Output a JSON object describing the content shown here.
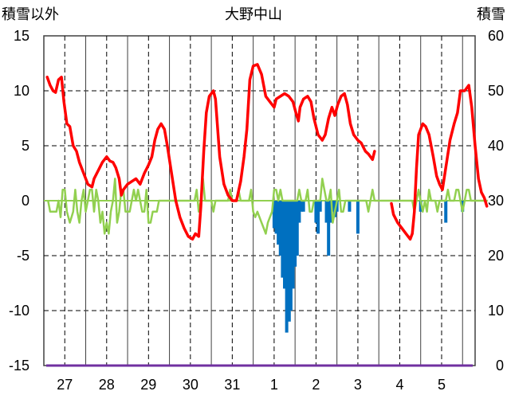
{
  "chart_data": {
    "type": "line",
    "title": "大野中山",
    "left_axis_label": "積雪以外",
    "right_axis_label": "積雪",
    "y_left_range": [
      -15,
      15
    ],
    "y_left_ticks": [
      "15",
      "10",
      "5",
      "0",
      "-5",
      "-10",
      "-15"
    ],
    "y_right_range": [
      0,
      60
    ],
    "y_right_ticks": [
      "60",
      "50",
      "40",
      "30",
      "20",
      "10",
      "0"
    ],
    "x_range_days": [
      0,
      10.3
    ],
    "x_ticks": [
      "27",
      "28",
      "29",
      "30",
      "31",
      "1",
      "2",
      "3",
      "4",
      "5"
    ],
    "grid": true,
    "colors": {
      "snow_depth": "#ff0000",
      "temperature": "#92d050",
      "snowfall": "#0070c0",
      "baseline": "#7030a0",
      "zero_line": "#92d050",
      "grid": "#000000"
    },
    "series": [
      {
        "axis": "right",
        "kind": "line",
        "points": [
          [
            0.08,
            52.5
          ],
          [
            0.15,
            51
          ],
          [
            0.22,
            50
          ],
          [
            0.28,
            49.7
          ],
          [
            0.35,
            52
          ],
          [
            0.42,
            52.5
          ],
          [
            0.48,
            48
          ],
          [
            0.55,
            44
          ],
          [
            0.62,
            43.5
          ],
          [
            0.7,
            40
          ],
          [
            0.78,
            39
          ],
          [
            0.85,
            37
          ],
          [
            0.95,
            35
          ],
          [
            1.05,
            33
          ],
          [
            1.15,
            32.5
          ],
          [
            1.2,
            34
          ],
          [
            1.3,
            35.5
          ],
          [
            1.4,
            37
          ],
          [
            1.5,
            38
          ],
          [
            1.58,
            37.2
          ],
          [
            1.65,
            37
          ],
          [
            1.72,
            36
          ],
          [
            1.8,
            34
          ],
          [
            1.85,
            31
          ],
          [
            1.9,
            32
          ],
          [
            2.0,
            33
          ],
          [
            2.1,
            33.5
          ],
          [
            2.2,
            34
          ],
          [
            2.3,
            33
          ],
          [
            2.4,
            35
          ],
          [
            2.5,
            36.5
          ],
          [
            2.58,
            38
          ],
          [
            2.65,
            41
          ],
          [
            2.72,
            43
          ],
          [
            2.8,
            44
          ],
          [
            2.88,
            43
          ],
          [
            2.95,
            40
          ],
          [
            3.05,
            35
          ],
          [
            3.15,
            30
          ],
          [
            3.25,
            27
          ],
          [
            3.35,
            25
          ],
          [
            3.45,
            23.5
          ],
          [
            3.55,
            23
          ],
          [
            3.62,
            24
          ],
          [
            3.7,
            23.5
          ],
          [
            3.75,
            29
          ],
          [
            3.82,
            39
          ],
          [
            3.88,
            46
          ],
          [
            3.95,
            49
          ],
          [
            4.05,
            50
          ],
          [
            4.1,
            48.5
          ],
          [
            4.2,
            38
          ],
          [
            4.3,
            33
          ],
          [
            4.4,
            31
          ],
          [
            4.5,
            30
          ],
          [
            4.6,
            30
          ],
          [
            4.7,
            33.5
          ],
          [
            4.78,
            38
          ],
          [
            4.85,
            43
          ],
          [
            4.92,
            52
          ],
          [
            5.0,
            54.5
          ],
          [
            5.1,
            54.8
          ],
          [
            5.2,
            53
          ],
          [
            5.3,
            49
          ],
          [
            5.4,
            48
          ],
          [
            5.5,
            47
          ],
          [
            5.55,
            48.5
          ],
          [
            5.65,
            49
          ],
          [
            5.75,
            49.5
          ],
          [
            5.85,
            49
          ],
          [
            5.95,
            48
          ],
          [
            6.02,
            46
          ],
          [
            6.08,
            44.5
          ],
          [
            6.12,
            47
          ],
          [
            6.2,
            48.5
          ],
          [
            6.3,
            49
          ],
          [
            6.38,
            48
          ],
          [
            6.45,
            45
          ],
          [
            6.55,
            42
          ],
          [
            6.65,
            41
          ],
          [
            6.72,
            42
          ],
          [
            6.8,
            45
          ],
          [
            6.88,
            47
          ],
          [
            6.95,
            45.5
          ],
          [
            7.02,
            47.5
          ],
          [
            7.1,
            49
          ],
          [
            7.18,
            49.5
          ],
          [
            7.25,
            47.5
          ],
          [
            7.32,
            44
          ],
          [
            7.4,
            42
          ],
          [
            7.5,
            41
          ],
          [
            7.58,
            40.5
          ],
          [
            7.68,
            39
          ],
          [
            7.75,
            38.5
          ],
          [
            7.8,
            38
          ],
          [
            7.85,
            37.5
          ],
          [
            7.9,
            39
          ]
        ]
      },
      {
        "axis": "right",
        "kind": "line",
        "points": [
          [
            8.3,
            29.5
          ],
          [
            8.35,
            27.5
          ],
          [
            8.45,
            26
          ],
          [
            8.55,
            25
          ],
          [
            8.65,
            24
          ],
          [
            8.75,
            23
          ],
          [
            8.8,
            24
          ],
          [
            8.85,
            28
          ],
          [
            8.9,
            36
          ],
          [
            8.95,
            42
          ],
          [
            9.05,
            44
          ],
          [
            9.12,
            43.5
          ],
          [
            9.2,
            42
          ],
          [
            9.3,
            38
          ],
          [
            9.38,
            34.5
          ],
          [
            9.45,
            33
          ],
          [
            9.52,
            32
          ],
          [
            9.6,
            36
          ],
          [
            9.7,
            41
          ],
          [
            9.8,
            44
          ],
          [
            9.88,
            46
          ],
          [
            9.95,
            50
          ],
          [
            10.05,
            50
          ],
          [
            10.15,
            51
          ],
          [
            10.22,
            47
          ],
          [
            10.3,
            40
          ],
          [
            10.38,
            34
          ],
          [
            10.45,
            31.5
          ],
          [
            10.52,
            30.5
          ],
          [
            10.58,
            29
          ]
        ]
      },
      {
        "axis": "left",
        "kind": "line",
        "points": [
          [
            0.1,
            0
          ],
          [
            0.15,
            -1
          ],
          [
            0.2,
            -1
          ],
          [
            0.3,
            -1
          ],
          [
            0.35,
            0
          ],
          [
            0.4,
            -1.5
          ],
          [
            0.45,
            1
          ],
          [
            0.5,
            1
          ],
          [
            0.55,
            -1
          ],
          [
            0.62,
            -2
          ],
          [
            0.7,
            -1
          ],
          [
            0.75,
            1
          ],
          [
            0.8,
            -1
          ],
          [
            0.85,
            -2
          ],
          [
            0.9,
            0
          ],
          [
            0.95,
            1
          ],
          [
            1.0,
            -1
          ],
          [
            1.05,
            0
          ],
          [
            1.1,
            1
          ],
          [
            1.15,
            1
          ],
          [
            1.2,
            -1
          ],
          [
            1.25,
            1
          ],
          [
            1.3,
            0
          ],
          [
            1.35,
            -2
          ],
          [
            1.4,
            -1
          ],
          [
            1.45,
            -3
          ],
          [
            1.5,
            -2
          ],
          [
            1.55,
            -3
          ],
          [
            1.6,
            -1
          ],
          [
            1.65,
            0
          ],
          [
            1.7,
            2
          ],
          [
            1.75,
            -2
          ],
          [
            1.8,
            -1
          ],
          [
            1.85,
            1
          ],
          [
            1.9,
            1
          ],
          [
            1.95,
            -1
          ],
          [
            2.0,
            -1
          ],
          [
            2.05,
            -1
          ],
          [
            2.1,
            0
          ],
          [
            2.15,
            1
          ],
          [
            2.2,
            0
          ],
          [
            2.25,
            1
          ],
          [
            2.3,
            0
          ],
          [
            2.35,
            -1
          ],
          [
            2.4,
            -1
          ],
          [
            2.45,
            1
          ],
          [
            2.5,
            -2
          ],
          [
            2.55,
            -2
          ],
          [
            2.6,
            -1
          ],
          [
            2.65,
            -1
          ],
          [
            2.7,
            -1
          ],
          [
            2.75,
            0
          ],
          [
            2.8,
            0
          ],
          [
            2.85,
            0
          ],
          [
            3.6,
            0
          ],
          [
            3.65,
            1
          ],
          [
            3.7,
            -1
          ],
          [
            3.75,
            0
          ],
          [
            3.8,
            2
          ],
          [
            3.85,
            0
          ],
          [
            4.0,
            0
          ],
          [
            4.05,
            -1
          ],
          [
            4.1,
            0
          ],
          [
            4.4,
            0
          ],
          [
            4.45,
            1
          ],
          [
            4.5,
            0
          ],
          [
            4.6,
            0
          ],
          [
            4.65,
            1
          ],
          [
            4.7,
            0
          ],
          [
            4.9,
            0
          ],
          [
            4.95,
            1
          ],
          [
            5.0,
            -1
          ],
          [
            5.05,
            -1.5
          ],
          [
            5.1,
            -1
          ],
          [
            5.15,
            -1.5
          ],
          [
            5.2,
            -2
          ],
          [
            5.25,
            -2.5
          ],
          [
            5.3,
            -3
          ],
          [
            5.35,
            -2
          ],
          [
            5.4,
            -1.5
          ],
          [
            5.45,
            -1
          ],
          [
            5.5,
            1
          ],
          [
            5.55,
            1
          ],
          [
            5.6,
            0
          ],
          [
            5.65,
            1
          ],
          [
            5.7,
            0
          ],
          [
            5.75,
            0
          ],
          [
            6.05,
            0
          ],
          [
            6.1,
            1
          ],
          [
            6.15,
            0
          ],
          [
            6.25,
            0
          ],
          [
            6.3,
            1
          ],
          [
            6.35,
            -1
          ],
          [
            6.4,
            -1
          ],
          [
            6.45,
            0
          ],
          [
            6.5,
            0
          ],
          [
            6.55,
            0
          ],
          [
            6.6,
            0
          ],
          [
            6.65,
            2
          ],
          [
            6.7,
            1
          ],
          [
            6.75,
            0
          ],
          [
            6.8,
            0
          ],
          [
            6.85,
            1
          ],
          [
            6.9,
            -2
          ],
          [
            6.95,
            -1
          ],
          [
            7.0,
            0
          ],
          [
            7.05,
            1
          ],
          [
            7.1,
            -1
          ],
          [
            7.15,
            -1
          ],
          [
            7.2,
            0
          ],
          [
            7.25,
            0
          ],
          [
            7.3,
            0
          ],
          [
            7.7,
            0
          ],
          [
            7.75,
            -1
          ],
          [
            7.8,
            0
          ],
          [
            7.85,
            1
          ],
          [
            7.9,
            0
          ],
          [
            8.0,
            0
          ],
          [
            8.8,
            0
          ],
          [
            8.85,
            -1
          ],
          [
            8.9,
            0
          ],
          [
            8.95,
            1
          ],
          [
            9.0,
            0
          ],
          [
            9.05,
            -1
          ],
          [
            9.1,
            0
          ],
          [
            9.15,
            -1
          ],
          [
            9.2,
            1
          ],
          [
            9.25,
            0
          ],
          [
            9.3,
            0
          ],
          [
            9.35,
            0
          ],
          [
            9.4,
            -1
          ],
          [
            9.45,
            0
          ],
          [
            9.6,
            0
          ],
          [
            9.65,
            1
          ],
          [
            9.7,
            0
          ],
          [
            9.8,
            0
          ],
          [
            9.85,
            1
          ],
          [
            9.9,
            1
          ],
          [
            9.95,
            0
          ],
          [
            10.0,
            -1
          ],
          [
            10.05,
            0
          ],
          [
            10.1,
            1
          ],
          [
            10.15,
            1
          ],
          [
            10.2,
            0
          ],
          [
            10.6,
            0
          ]
        ]
      },
      {
        "axis": "left",
        "kind": "bar",
        "points": [
          [
            5.5,
            -2.5
          ],
          [
            5.55,
            -3
          ],
          [
            5.6,
            -4
          ],
          [
            5.65,
            -5
          ],
          [
            5.7,
            -7
          ],
          [
            5.75,
            -8
          ],
          [
            5.8,
            -12
          ],
          [
            5.83,
            -9
          ],
          [
            5.86,
            -11
          ],
          [
            5.9,
            -10
          ],
          [
            5.95,
            -8
          ],
          [
            6.0,
            -6
          ],
          [
            6.05,
            -5
          ],
          [
            6.1,
            -2
          ],
          [
            6.15,
            -1
          ],
          [
            6.2,
            -1
          ],
          [
            6.5,
            -2
          ],
          [
            6.55,
            -3
          ],
          [
            6.6,
            -1
          ],
          [
            6.75,
            -2
          ],
          [
            6.8,
            -5
          ],
          [
            6.85,
            -2
          ],
          [
            6.9,
            -1
          ],
          [
            6.95,
            -1.5
          ],
          [
            7.0,
            -1
          ],
          [
            7.3,
            -1
          ],
          [
            7.5,
            -3
          ],
          [
            9.0,
            -1
          ],
          [
            9.6,
            -2
          ],
          [
            10.0,
            -1
          ]
        ]
      }
    ]
  }
}
